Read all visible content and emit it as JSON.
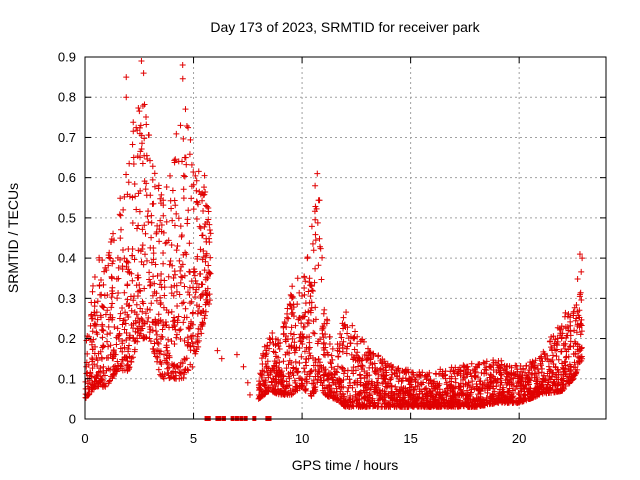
{
  "chart_data": {
    "type": "scatter",
    "title": "Day 173 of 2023, SRMTID for receiver park",
    "xlabel": "GPS time / hours",
    "ylabel": "SRMTID / TECUs",
    "xlim": [
      0,
      24
    ],
    "ylim": [
      0,
      0.9
    ],
    "x_ticks": [
      0,
      5,
      10,
      15,
      20
    ],
    "y_ticks": [
      0,
      0.1,
      0.2,
      0.3,
      0.4,
      0.5,
      0.6,
      0.7,
      0.8,
      0.9
    ],
    "x_tick_labels": [
      "0",
      "5",
      "10",
      "15",
      "20"
    ],
    "y_tick_labels": [
      "0",
      "0.1",
      "0.2",
      "0.3",
      "0.4",
      "0.5",
      "0.6",
      "0.7",
      "0.8",
      "0.9"
    ],
    "grid": true,
    "marker": "+",
    "color": "#e00000",
    "series": [
      {
        "name": "SRMTID",
        "envelope": [
          {
            "x": 0.0,
            "low": 0.05,
            "high": 0.18
          },
          {
            "x": 0.5,
            "low": 0.08,
            "high": 0.4
          },
          {
            "x": 1.0,
            "low": 0.08,
            "high": 0.42
          },
          {
            "x": 1.5,
            "low": 0.12,
            "high": 0.52
          },
          {
            "x": 2.0,
            "low": 0.12,
            "high": 0.65
          },
          {
            "x": 2.5,
            "low": 0.2,
            "high": 0.86
          },
          {
            "x": 3.0,
            "low": 0.2,
            "high": 0.7
          },
          {
            "x": 3.5,
            "low": 0.1,
            "high": 0.58
          },
          {
            "x": 4.0,
            "low": 0.1,
            "high": 0.62
          },
          {
            "x": 4.5,
            "low": 0.1,
            "high": 0.88
          },
          {
            "x": 5.0,
            "low": 0.12,
            "high": 0.62
          },
          {
            "x": 5.5,
            "low": 0.25,
            "high": 0.63
          },
          {
            "x": 5.8,
            "low": 0.3,
            "high": 0.5
          },
          {
            "x": 8.0,
            "low": 0.05,
            "high": 0.14
          },
          {
            "x": 8.5,
            "low": 0.07,
            "high": 0.22
          },
          {
            "x": 9.0,
            "low": 0.06,
            "high": 0.2
          },
          {
            "x": 9.5,
            "low": 0.06,
            "high": 0.34
          },
          {
            "x": 10.0,
            "low": 0.08,
            "high": 0.32
          },
          {
            "x": 10.5,
            "low": 0.05,
            "high": 0.5
          },
          {
            "x": 10.8,
            "low": 0.1,
            "high": 0.61
          },
          {
            "x": 11.0,
            "low": 0.06,
            "high": 0.3
          },
          {
            "x": 11.5,
            "low": 0.05,
            "high": 0.16
          },
          {
            "x": 12.0,
            "low": 0.03,
            "high": 0.28
          },
          {
            "x": 13.0,
            "low": 0.03,
            "high": 0.18
          },
          {
            "x": 14.0,
            "low": 0.03,
            "high": 0.14
          },
          {
            "x": 15.0,
            "low": 0.03,
            "high": 0.12
          },
          {
            "x": 16.0,
            "low": 0.03,
            "high": 0.12
          },
          {
            "x": 17.0,
            "low": 0.03,
            "high": 0.13
          },
          {
            "x": 18.0,
            "low": 0.03,
            "high": 0.14
          },
          {
            "x": 19.0,
            "low": 0.04,
            "high": 0.15
          },
          {
            "x": 20.0,
            "low": 0.04,
            "high": 0.13
          },
          {
            "x": 21.0,
            "low": 0.06,
            "high": 0.16
          },
          {
            "x": 22.0,
            "low": 0.07,
            "high": 0.26
          },
          {
            "x": 22.5,
            "low": 0.1,
            "high": 0.3
          },
          {
            "x": 22.9,
            "low": 0.15,
            "high": 0.41
          }
        ],
        "isolated_points": [
          {
            "x": 2.6,
            "y": 0.89
          },
          {
            "x": 4.5,
            "y": 0.88
          },
          {
            "x": 1.9,
            "y": 0.85
          },
          {
            "x": 1.9,
            "y": 0.8
          },
          {
            "x": 2.7,
            "y": 0.86
          },
          {
            "x": 4.4,
            "y": 0.73
          },
          {
            "x": 4.6,
            "y": 0.65
          },
          {
            "x": 10.7,
            "y": 0.61
          },
          {
            "x": 10.6,
            "y": 0.58
          },
          {
            "x": 9.8,
            "y": 0.35
          },
          {
            "x": 22.9,
            "y": 0.4
          },
          {
            "x": 22.8,
            "y": 0.41
          },
          {
            "x": 6.1,
            "y": 0.17
          },
          {
            "x": 6.3,
            "y": 0.15
          },
          {
            "x": 7.0,
            "y": 0.16
          },
          {
            "x": 7.3,
            "y": 0.13
          },
          {
            "x": 7.5,
            "y": 0.09
          },
          {
            "x": 7.6,
            "y": 0.06
          }
        ],
        "zero_points_x": [
          5.6,
          5.7,
          6.1,
          6.2,
          6.4,
          6.8,
          7.0,
          7.2,
          7.4,
          7.8,
          8.4,
          8.5
        ]
      }
    ]
  }
}
